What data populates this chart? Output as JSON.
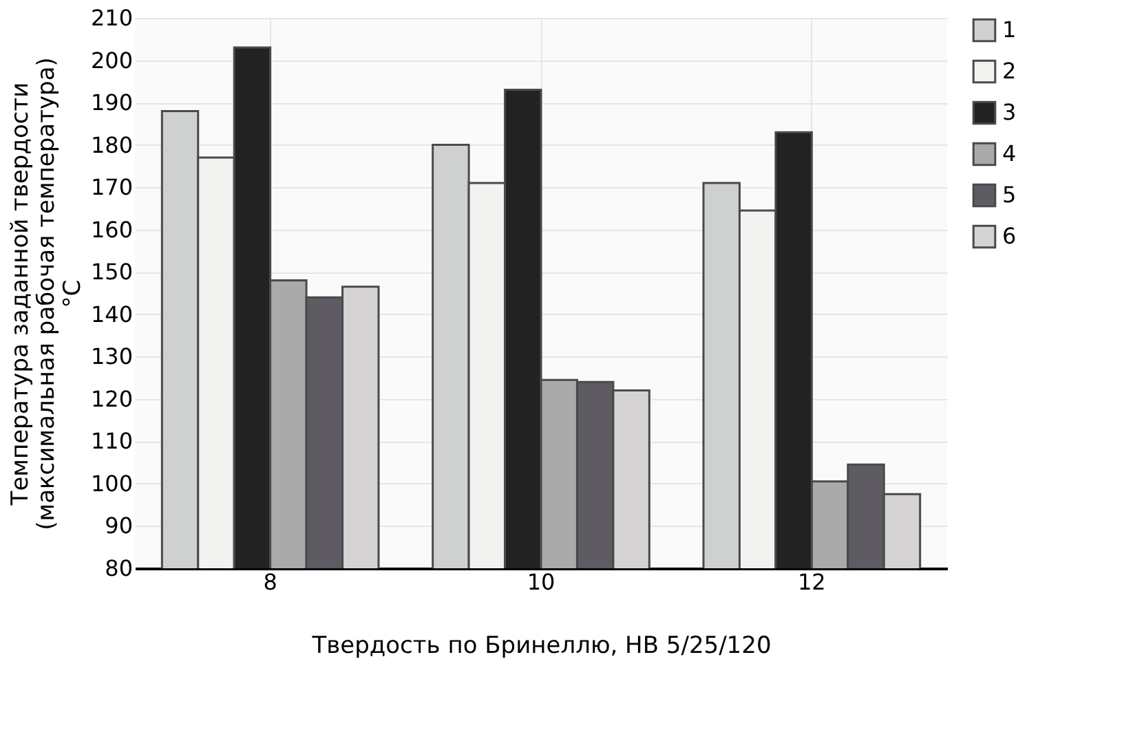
{
  "chart_data": {
    "type": "bar",
    "xlabel": "Твердость по Бринеллю, НВ 5/25/120",
    "ylabel": "Температура заданной твердости\n(максимальная рабочая температура)\n°C",
    "categories": [
      "8",
      "10",
      "12"
    ],
    "series": [
      {
        "name": "1",
        "color": "#cfd1d0",
        "values": [
          188,
          180,
          171
        ]
      },
      {
        "name": "2",
        "color": "#f2f2f1",
        "values": [
          177,
          171,
          164.5
        ]
      },
      {
        "name": "3",
        "color": "#222222",
        "values": [
          203,
          193,
          183
        ]
      },
      {
        "name": "4",
        "color": "#aaaaaa",
        "values": [
          148,
          124.5,
          100.5
        ]
      },
      {
        "name": "5",
        "color": "#5e5b62",
        "values": [
          144,
          124,
          104.5
        ]
      },
      {
        "name": "6",
        "color": "#d5d3d3",
        "values": [
          146.5,
          122,
          97.5
        ]
      }
    ],
    "ylim": [
      80,
      210
    ],
    "yticks": [
      80,
      90,
      100,
      110,
      120,
      130,
      140,
      150,
      160,
      170,
      180,
      190,
      200,
      210
    ],
    "grid": true,
    "legend": "top right"
  }
}
